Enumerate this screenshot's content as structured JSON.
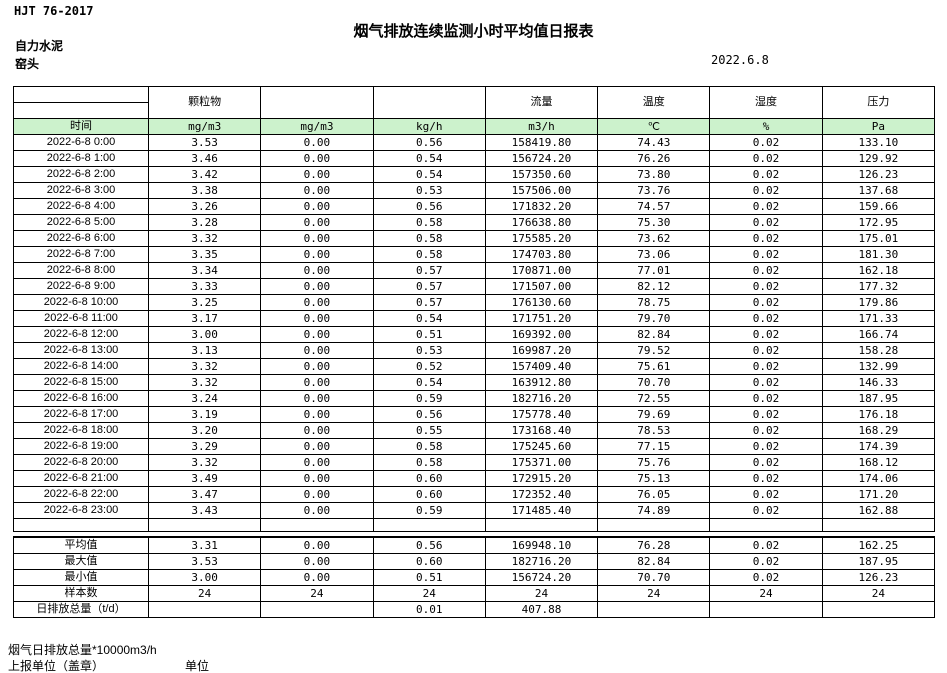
{
  "meta": {
    "standard": "HJT  76-2017",
    "title": "烟气排放连续监测小时平均值日报表",
    "company": "自力水泥",
    "location": "窑头",
    "date": "2022.6.8"
  },
  "colors": {
    "unit_row_bg": "#ccf2cc",
    "border": "#000000"
  },
  "table": {
    "time_label": "时间",
    "pollutants": [
      "颗粒物",
      "",
      "",
      "流量",
      "温度",
      "湿度",
      "压力"
    ],
    "units": [
      "mg/m3",
      "mg/m3",
      "kg/h",
      "m3/h",
      "℃",
      "%",
      "Pa"
    ],
    "rows": [
      {
        "time": "2022-6-8 0:00",
        "values": [
          "3.53",
          "0.00",
          "0.56",
          "158419.80",
          "74.43",
          "0.02",
          "133.10"
        ]
      },
      {
        "time": "2022-6-8 1:00",
        "values": [
          "3.46",
          "0.00",
          "0.54",
          "156724.20",
          "76.26",
          "0.02",
          "129.92"
        ]
      },
      {
        "time": "2022-6-8 2:00",
        "values": [
          "3.42",
          "0.00",
          "0.54",
          "157350.60",
          "73.80",
          "0.02",
          "126.23"
        ]
      },
      {
        "time": "2022-6-8 3:00",
        "values": [
          "3.38",
          "0.00",
          "0.53",
          "157506.00",
          "73.76",
          "0.02",
          "137.68"
        ]
      },
      {
        "time": "2022-6-8 4:00",
        "values": [
          "3.26",
          "0.00",
          "0.56",
          "171832.20",
          "74.57",
          "0.02",
          "159.66"
        ]
      },
      {
        "time": "2022-6-8 5:00",
        "values": [
          "3.28",
          "0.00",
          "0.58",
          "176638.80",
          "75.30",
          "0.02",
          "172.95"
        ]
      },
      {
        "time": "2022-6-8 6:00",
        "values": [
          "3.32",
          "0.00",
          "0.58",
          "175585.20",
          "73.62",
          "0.02",
          "175.01"
        ]
      },
      {
        "time": "2022-6-8 7:00",
        "values": [
          "3.35",
          "0.00",
          "0.58",
          "174703.80",
          "73.06",
          "0.02",
          "181.30"
        ]
      },
      {
        "time": "2022-6-8 8:00",
        "values": [
          "3.34",
          "0.00",
          "0.57",
          "170871.00",
          "77.01",
          "0.02",
          "162.18"
        ]
      },
      {
        "time": "2022-6-8 9:00",
        "values": [
          "3.33",
          "0.00",
          "0.57",
          "171507.00",
          "82.12",
          "0.02",
          "177.32"
        ]
      },
      {
        "time": "2022-6-8 10:00",
        "values": [
          "3.25",
          "0.00",
          "0.57",
          "176130.60",
          "78.75",
          "0.02",
          "179.86"
        ]
      },
      {
        "time": "2022-6-8 11:00",
        "values": [
          "3.17",
          "0.00",
          "0.54",
          "171751.20",
          "79.70",
          "0.02",
          "171.33"
        ]
      },
      {
        "time": "2022-6-8 12:00",
        "values": [
          "3.00",
          "0.00",
          "0.51",
          "169392.00",
          "82.84",
          "0.02",
          "166.74"
        ]
      },
      {
        "time": "2022-6-8 13:00",
        "values": [
          "3.13",
          "0.00",
          "0.53",
          "169987.20",
          "79.52",
          "0.02",
          "158.28"
        ]
      },
      {
        "time": "2022-6-8 14:00",
        "values": [
          "3.32",
          "0.00",
          "0.52",
          "157409.40",
          "75.61",
          "0.02",
          "132.99"
        ]
      },
      {
        "time": "2022-6-8 15:00",
        "values": [
          "3.32",
          "0.00",
          "0.54",
          "163912.80",
          "70.70",
          "0.02",
          "146.33"
        ]
      },
      {
        "time": "2022-6-8 16:00",
        "values": [
          "3.24",
          "0.00",
          "0.59",
          "182716.20",
          "72.55",
          "0.02",
          "187.95"
        ]
      },
      {
        "time": "2022-6-8 17:00",
        "values": [
          "3.19",
          "0.00",
          "0.56",
          "175778.40",
          "79.69",
          "0.02",
          "176.18"
        ]
      },
      {
        "time": "2022-6-8 18:00",
        "values": [
          "3.20",
          "0.00",
          "0.55",
          "173168.40",
          "78.53",
          "0.02",
          "168.29"
        ]
      },
      {
        "time": "2022-6-8 19:00",
        "values": [
          "3.29",
          "0.00",
          "0.58",
          "175245.60",
          "77.15",
          "0.02",
          "174.39"
        ]
      },
      {
        "time": "2022-6-8 20:00",
        "values": [
          "3.32",
          "0.00",
          "0.58",
          "175371.00",
          "75.76",
          "0.02",
          "168.12"
        ]
      },
      {
        "time": "2022-6-8 21:00",
        "values": [
          "3.49",
          "0.00",
          "0.60",
          "172915.20",
          "75.13",
          "0.02",
          "174.06"
        ]
      },
      {
        "time": "2022-6-8 22:00",
        "values": [
          "3.47",
          "0.00",
          "0.60",
          "172352.40",
          "76.05",
          "0.02",
          "171.20"
        ]
      },
      {
        "time": "2022-6-8 23:00",
        "values": [
          "3.43",
          "0.00",
          "0.59",
          "171485.40",
          "74.89",
          "0.02",
          "162.88"
        ]
      }
    ],
    "summary": [
      {
        "label": "平均值",
        "values": [
          "3.31",
          "0.00",
          "0.56",
          "169948.10",
          "76.28",
          "0.02",
          "162.25"
        ]
      },
      {
        "label": "最大值",
        "values": [
          "3.53",
          "0.00",
          "0.60",
          "182716.20",
          "82.84",
          "0.02",
          "187.95"
        ]
      },
      {
        "label": "最小值",
        "values": [
          "3.00",
          "0.00",
          "0.51",
          "156724.20",
          "70.70",
          "0.02",
          "126.23"
        ]
      },
      {
        "label": "样本数",
        "values": [
          "24",
          "24",
          "24",
          "24",
          "24",
          "24",
          "24"
        ]
      },
      {
        "label": "日排放总量（t/d）",
        "values": [
          "",
          "",
          "0.01",
          "407.88",
          "",
          "",
          ""
        ],
        "label_left": true
      }
    ]
  },
  "footer": {
    "note": "烟气日排放总量*10000m3/h",
    "report_unit_label": "上报单位（盖章）",
    "unit_label": "单位"
  }
}
